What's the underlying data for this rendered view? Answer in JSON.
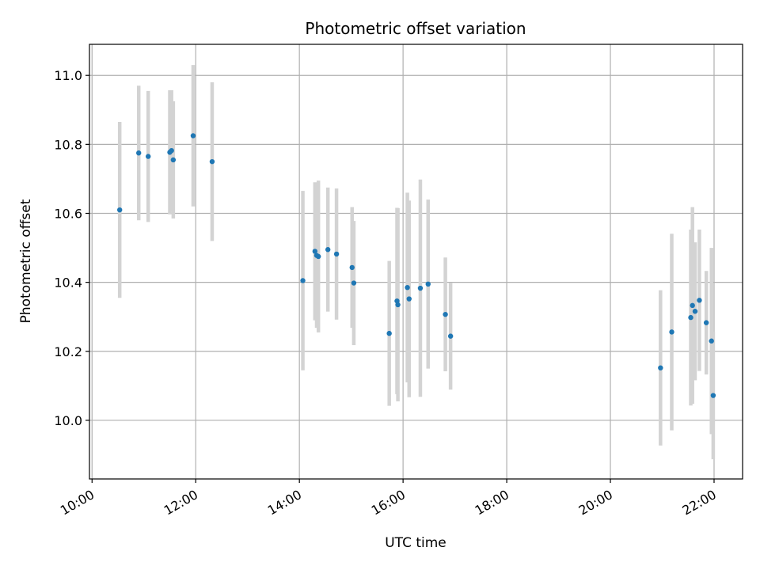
{
  "chart_data": {
    "type": "scatter",
    "title": "Photometric offset variation",
    "xlabel": "UTC time",
    "ylabel": "Photometric offset",
    "x_tick_labels": [
      "10:00",
      "12:00",
      "14:00",
      "16:00",
      "18:00",
      "20:00",
      "22:00"
    ],
    "y_tick_labels": [
      "10.0",
      "10.2",
      "10.4",
      "10.6",
      "10.8",
      "11.0"
    ],
    "xlim": [
      "09:57",
      "22:33"
    ],
    "ylim": [
      9.83,
      11.09
    ],
    "grid": true,
    "colors": {
      "points": "#1f77b4",
      "errorbars": "#d3d3d3",
      "grid": "#b0b0b0"
    },
    "points": [
      {
        "time": "10:32",
        "y": 10.61,
        "err": 0.255
      },
      {
        "time": "10:54",
        "y": 10.775,
        "err": 0.195
      },
      {
        "time": "11:05",
        "y": 10.765,
        "err": 0.19
      },
      {
        "time": "11:30",
        "y": 10.777,
        "err": 0.18
      },
      {
        "time": "11:32",
        "y": 10.782,
        "err": 0.175
      },
      {
        "time": "11:34",
        "y": 10.755,
        "err": 0.17
      },
      {
        "time": "11:57",
        "y": 10.825,
        "err": 0.205
      },
      {
        "time": "12:19",
        "y": 10.75,
        "err": 0.23
      },
      {
        "time": "14:04",
        "y": 10.405,
        "err": 0.26
      },
      {
        "time": "14:18",
        "y": 10.49,
        "err": 0.2
      },
      {
        "time": "14:20",
        "y": 10.478,
        "err": 0.21
      },
      {
        "time": "14:22",
        "y": 10.475,
        "err": 0.22
      },
      {
        "time": "14:33",
        "y": 10.495,
        "err": 0.18
      },
      {
        "time": "14:43",
        "y": 10.482,
        "err": 0.19
      },
      {
        "time": "15:01",
        "y": 10.443,
        "err": 0.175
      },
      {
        "time": "15:03",
        "y": 10.398,
        "err": 0.18
      },
      {
        "time": "15:44",
        "y": 10.252,
        "err": 0.21
      },
      {
        "time": "15:53",
        "y": 10.346,
        "err": 0.27
      },
      {
        "time": "15:54",
        "y": 10.335,
        "err": 0.28
      },
      {
        "time": "16:05",
        "y": 10.385,
        "err": 0.275
      },
      {
        "time": "16:07",
        "y": 10.352,
        "err": 0.285
      },
      {
        "time": "16:20",
        "y": 10.383,
        "err": 0.315
      },
      {
        "time": "16:29",
        "y": 10.395,
        "err": 0.245
      },
      {
        "time": "16:49",
        "y": 10.307,
        "err": 0.165
      },
      {
        "time": "16:55",
        "y": 10.244,
        "err": 0.155
      },
      {
        "time": "20:58",
        "y": 10.152,
        "err": 0.225
      },
      {
        "time": "21:11",
        "y": 10.256,
        "err": 0.285
      },
      {
        "time": "21:33",
        "y": 10.298,
        "err": 0.255
      },
      {
        "time": "21:35",
        "y": 10.333,
        "err": 0.285
      },
      {
        "time": "21:38",
        "y": 10.316,
        "err": 0.2
      },
      {
        "time": "21:43",
        "y": 10.348,
        "err": 0.205
      },
      {
        "time": "21:51",
        "y": 10.283,
        "err": 0.15
      },
      {
        "time": "21:57",
        "y": 10.23,
        "err": 0.27
      },
      {
        "time": "21:59",
        "y": 10.072,
        "err": 0.185
      }
    ]
  }
}
